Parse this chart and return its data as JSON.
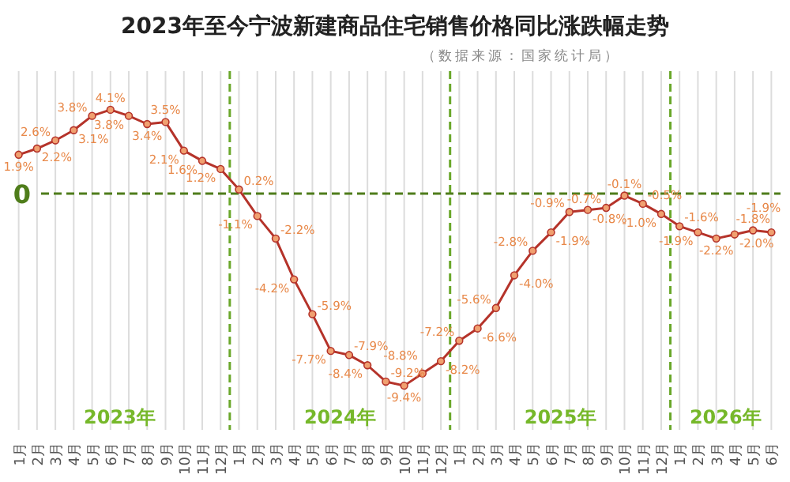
{
  "chart_data": {
    "type": "line",
    "title": "2023年至今宁波新建商品住宅销售价格同比涨跌幅走势",
    "subtitle": "（数据来源：国家统计局）",
    "categories": [
      "1月",
      "2月",
      "3月",
      "4月",
      "5月",
      "6月",
      "7月",
      "8月",
      "9月",
      "10月",
      "11月",
      "12月",
      "1月",
      "2月",
      "3月",
      "4月",
      "5月",
      "6月",
      "7月",
      "8月",
      "9月",
      "10月",
      "11月",
      "12月",
      "1月",
      "2月",
      "3月",
      "4月",
      "5月",
      "6月",
      "7月",
      "8月",
      "9月",
      "10月",
      "11月",
      "12月",
      "1月",
      "2月",
      "3月",
      "4月",
      "5月",
      "6月"
    ],
    "series": [
      {
        "color": "#b5332a",
        "values": [
          1.9,
          2.2,
          2.6,
          3.1,
          3.8,
          4.1,
          3.8,
          3.4,
          3.5,
          2.1,
          1.6,
          1.2,
          0.2,
          -1.1,
          -2.2,
          -4.2,
          -5.9,
          -7.7,
          -7.9,
          -8.4,
          -9.2,
          -9.4,
          -8.8,
          -8.2,
          -7.2,
          -6.6,
          -5.6,
          -4.0,
          -2.8,
          -1.9,
          -0.9,
          -0.8,
          -0.7,
          -0.1,
          -0.5,
          -1.0,
          -1.6,
          -1.9,
          -2.2,
          -2.0,
          -1.8,
          -1.9
        ],
        "value_labels": [
          "1.9%",
          "2.2%",
          "2.6%",
          "3.1%",
          "3.8%",
          "4.1%",
          "3.8%",
          "3.4%",
          "3.5%",
          "2.1%",
          "1.6%",
          "1.2%",
          "0.2%",
          "-1.1%",
          "-2.2%",
          "-4.2%",
          "-5.9%",
          "-7.7%",
          "-7.9%",
          "-8.4%",
          "-9.2%",
          "-9.4%",
          "-8.8%",
          "-8.2%",
          "-7.2%",
          "-6.6%",
          "-5.6%",
          "-4.0%",
          "-2.8%",
          "-1.9%",
          "-0.9%",
          "-0.8%",
          "-0.7%",
          "-0.1%",
          "-0.5%",
          "-1.0%",
          "-1.6%",
          "-1.9%",
          "-2.2%",
          "-2.0%",
          "-1.8%",
          "-1.9%"
        ]
      }
    ],
    "marker": "circle",
    "grid": "x",
    "tick_labels": "x",
    "ref_lines": [
      {
        "axis": "y",
        "value": 0,
        "label": "0",
        "color": "#4f7d1b",
        "line_style": "dashed"
      }
    ],
    "annotations": [
      "2023年",
      "2024年",
      "2025年",
      "2026年"
    ]
  }
}
